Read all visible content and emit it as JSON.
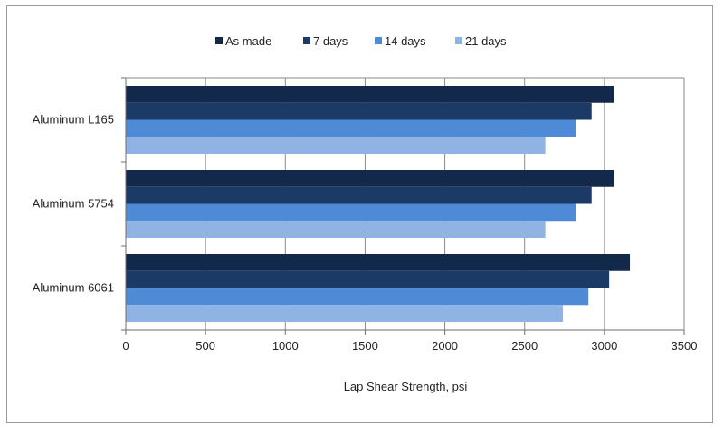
{
  "chart_data": {
    "type": "bar",
    "orientation": "horizontal",
    "title": "",
    "xlabel": "Lap Shear Strength, psi",
    "ylabel": "",
    "xlim": [
      0,
      3500
    ],
    "xticks": [
      0,
      500,
      1000,
      1500,
      2000,
      2500,
      3000,
      3500
    ],
    "grid": true,
    "legend_position": "top",
    "categories": [
      "Aluminum L165",
      "Aluminum 5754",
      "Aluminum 6061"
    ],
    "series": [
      {
        "name": "As made",
        "color": "#13294b",
        "values": [
          3060,
          3060,
          3160
        ]
      },
      {
        "name": "7 days",
        "color": "#1c3a66",
        "values": [
          2920,
          2920,
          3030
        ]
      },
      {
        "name": "14 days",
        "color": "#4f8ad6",
        "values": [
          2820,
          2820,
          2900
        ]
      },
      {
        "name": "21 days",
        "color": "#8fb3e3",
        "values": [
          2630,
          2630,
          2740
        ]
      }
    ]
  }
}
